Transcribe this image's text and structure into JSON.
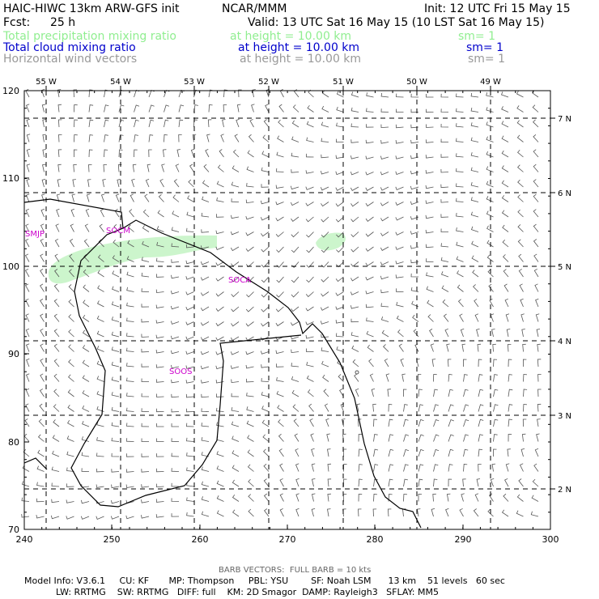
{
  "header": {
    "title_left": "HAIC-HIWC 13km ARW-GFS init",
    "title_center": "NCAR/MMM",
    "init": "Init: 12 UTC Fri 15 May 15",
    "fcst_label": "Fcst:",
    "fcst_value": "25 h",
    "valid": "Valid: 13 UTC Sat 16 May 15 (10 LST Sat 16 May 15)"
  },
  "fields": [
    {
      "name": "Total precipitation mixing ratio",
      "height": "at height = 10.00 km",
      "sm": "sm= 1",
      "color": "#90ee90"
    },
    {
      "name": "Total cloud mixing ratio",
      "height": "at height = 10.00 km",
      "sm": "sm= 1",
      "color": "#0000cc"
    },
    {
      "name": "Horizontal wind vectors",
      "height": "at height = 10.00 km",
      "sm": "sm= 1",
      "color": "#999999"
    }
  ],
  "map": {
    "top_lon_labels": [
      "55 W",
      "54 W",
      "53 W",
      "52 W",
      "51 W",
      "50 W",
      "49 W"
    ],
    "right_lat_labels": [
      "7 N",
      "6 N",
      "5 N",
      "4 N",
      "3 N",
      "2 N"
    ],
    "left_y_ticks": [
      "120",
      "110",
      "100",
      "90",
      "80",
      "70"
    ],
    "bottom_x_ticks": [
      "240",
      "250",
      "260",
      "270",
      "280",
      "290",
      "300"
    ],
    "station_labels": [
      "SMJP",
      "SOCM",
      "SOCA",
      "SOOS"
    ],
    "station_color": "#cc00cc",
    "coast_color": "#000000",
    "grid_color": "#000000",
    "barb_color": "#555555",
    "precip_color": "#ccf5cc"
  },
  "footer": {
    "barb_note": "BARB VECTORS:  FULL BARB = 10 kts",
    "model_line1": "Model Info: V3.6.1     CU: KF       MP: Thompson     PBL: YSU        SF: Noah LSM      13 km    51 levels   60 sec",
    "model_line2": "LW: RRTMG    SW: RRTMG   DIFF: full    KM: 2D Smagor  DAMP: Rayleigh3   SFLAY: MM5"
  }
}
